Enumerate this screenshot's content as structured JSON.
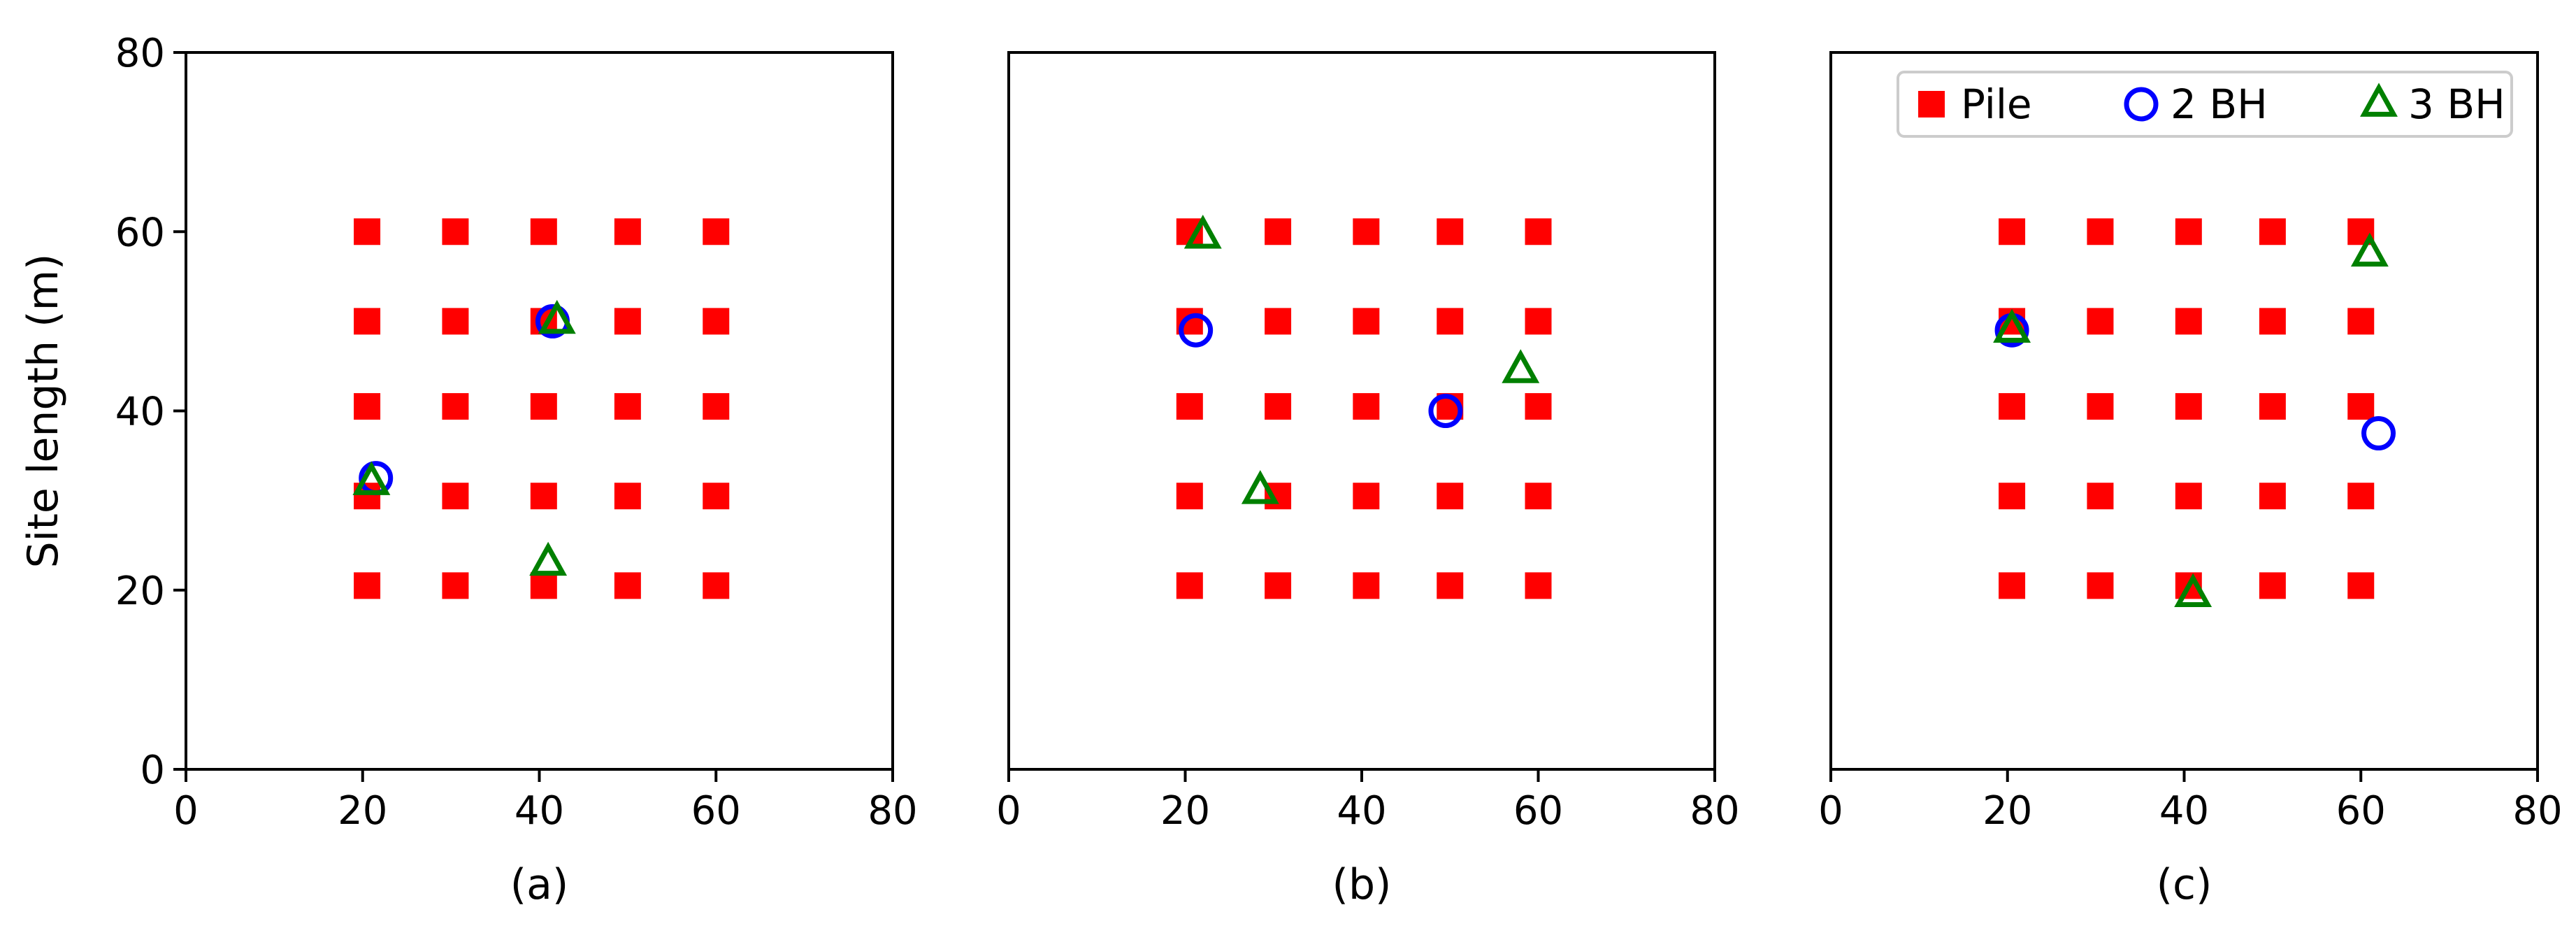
{
  "chart_data": [
    {
      "type": "scatter",
      "panel_label": "(a)",
      "xlabel": "",
      "ylabel": "Site length (m)",
      "xlim": [
        0,
        80
      ],
      "ylim": [
        0,
        80
      ],
      "xticks": [
        "0",
        "20",
        "40",
        "60",
        "80"
      ],
      "yticks": [
        "0",
        "20",
        "40",
        "60",
        "80"
      ],
      "grid": false,
      "legend": false,
      "series": [
        {
          "name": "Pile",
          "marker": "square",
          "color": "#ff0000",
          "points": [
            [
              20.5,
              20.5
            ],
            [
              30.5,
              20.5
            ],
            [
              40.5,
              20.5
            ],
            [
              50,
              20.5
            ],
            [
              60,
              20.5
            ],
            [
              20.5,
              30.5
            ],
            [
              30.5,
              30.5
            ],
            [
              40.5,
              30.5
            ],
            [
              50,
              30.5
            ],
            [
              60,
              30.5
            ],
            [
              20.5,
              40.5
            ],
            [
              30.5,
              40.5
            ],
            [
              40.5,
              40.5
            ],
            [
              50,
              40.5
            ],
            [
              60,
              40.5
            ],
            [
              20.5,
              50
            ],
            [
              30.5,
              50
            ],
            [
              40.5,
              50
            ],
            [
              50,
              50
            ],
            [
              60,
              50
            ],
            [
              20.5,
              60
            ],
            [
              30.5,
              60
            ],
            [
              40.5,
              60
            ],
            [
              50,
              60
            ],
            [
              60,
              60
            ]
          ]
        },
        {
          "name": "2 BH",
          "marker": "circle-open",
          "color": "#0000ff",
          "points": [
            [
              21.5,
              32.5
            ],
            [
              41.5,
              50
            ]
          ]
        },
        {
          "name": "3 BH",
          "marker": "triangle-open",
          "color": "#008000",
          "points": [
            [
              21,
              32
            ],
            [
              42,
              50
            ],
            [
              41,
              23
            ]
          ]
        }
      ]
    },
    {
      "type": "scatter",
      "panel_label": "(b)",
      "xlabel": "",
      "ylabel": "",
      "xlim": [
        0,
        80
      ],
      "ylim": [
        0,
        80
      ],
      "xticks": [
        "0",
        "20",
        "40",
        "60",
        "80"
      ],
      "yticks": [],
      "grid": false,
      "legend": false,
      "series": [
        {
          "name": "Pile",
          "marker": "square",
          "color": "#ff0000",
          "points": [
            [
              20.5,
              20.5
            ],
            [
              30.5,
              20.5
            ],
            [
              40.5,
              20.5
            ],
            [
              50,
              20.5
            ],
            [
              60,
              20.5
            ],
            [
              20.5,
              30.5
            ],
            [
              30.5,
              30.5
            ],
            [
              40.5,
              30.5
            ],
            [
              50,
              30.5
            ],
            [
              60,
              30.5
            ],
            [
              20.5,
              40.5
            ],
            [
              30.5,
              40.5
            ],
            [
              40.5,
              40.5
            ],
            [
              50,
              40.5
            ],
            [
              60,
              40.5
            ],
            [
              20.5,
              50
            ],
            [
              30.5,
              50
            ],
            [
              40.5,
              50
            ],
            [
              50,
              50
            ],
            [
              60,
              50
            ],
            [
              20.5,
              60
            ],
            [
              30.5,
              60
            ],
            [
              40.5,
              60
            ],
            [
              50,
              60
            ],
            [
              60,
              60
            ]
          ]
        },
        {
          "name": "2 BH",
          "marker": "circle-open",
          "color": "#0000ff",
          "points": [
            [
              21.2,
              49
            ],
            [
              49.5,
              40
            ]
          ]
        },
        {
          "name": "3 BH",
          "marker": "triangle-open",
          "color": "#008000",
          "points": [
            [
              22,
              59.5
            ],
            [
              28.5,
              31
            ],
            [
              58,
              44.5
            ]
          ]
        }
      ]
    },
    {
      "type": "scatter",
      "panel_label": "(c)",
      "xlabel": "",
      "ylabel": "",
      "xlim": [
        0,
        80
      ],
      "ylim": [
        0,
        80
      ],
      "xticks": [
        "0",
        "20",
        "40",
        "60",
        "80"
      ],
      "yticks": [],
      "grid": false,
      "legend": true,
      "legend_placement": "top-right",
      "series": [
        {
          "name": "Pile",
          "marker": "square",
          "color": "#ff0000",
          "points": [
            [
              20.5,
              20.5
            ],
            [
              30.5,
              20.5
            ],
            [
              40.5,
              20.5
            ],
            [
              50,
              20.5
            ],
            [
              60,
              20.5
            ],
            [
              20.5,
              30.5
            ],
            [
              30.5,
              30.5
            ],
            [
              40.5,
              30.5
            ],
            [
              50,
              30.5
            ],
            [
              60,
              30.5
            ],
            [
              20.5,
              40.5
            ],
            [
              30.5,
              40.5
            ],
            [
              40.5,
              40.5
            ],
            [
              50,
              40.5
            ],
            [
              60,
              40.5
            ],
            [
              20.5,
              50
            ],
            [
              30.5,
              50
            ],
            [
              40.5,
              50
            ],
            [
              50,
              50
            ],
            [
              60,
              50
            ],
            [
              20.5,
              60
            ],
            [
              30.5,
              60
            ],
            [
              40.5,
              60
            ],
            [
              50,
              60
            ],
            [
              60,
              60
            ]
          ]
        },
        {
          "name": "2 BH",
          "marker": "circle-open",
          "color": "#0000ff",
          "points": [
            [
              20.5,
              49
            ],
            [
              62,
              37.5
            ]
          ]
        },
        {
          "name": "3 BH",
          "marker": "triangle-open",
          "color": "#008000",
          "points": [
            [
              20.5,
              49
            ],
            [
              61,
              57.5
            ],
            [
              41,
              19.5
            ]
          ]
        }
      ]
    }
  ]
}
